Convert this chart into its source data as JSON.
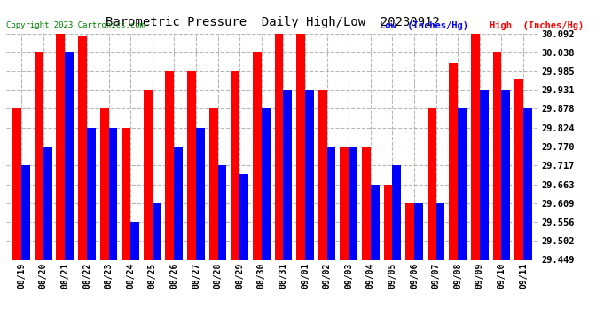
{
  "title": "Barometric Pressure  Daily High/Low  20230912",
  "copyright": "Copyright 2023 Cartronics.com",
  "legend_low": "Low  (Inches/Hg)",
  "legend_high": "High  (Inches/Hg)",
  "dates": [
    "08/19",
    "08/20",
    "08/21",
    "08/22",
    "08/23",
    "08/24",
    "08/25",
    "08/26",
    "08/27",
    "08/28",
    "08/29",
    "08/30",
    "08/31",
    "09/01",
    "09/02",
    "09/03",
    "09/04",
    "09/05",
    "09/06",
    "09/07",
    "09/08",
    "09/09",
    "09/10",
    "09/11"
  ],
  "high": [
    29.878,
    30.038,
    30.092,
    30.085,
    29.878,
    29.824,
    29.931,
    29.985,
    29.985,
    29.878,
    29.985,
    30.038,
    30.092,
    30.092,
    29.931,
    29.77,
    29.77,
    29.663,
    29.609,
    29.878,
    30.008,
    30.092,
    30.038,
    29.963
  ],
  "low": [
    29.717,
    29.77,
    30.038,
    29.824,
    29.824,
    29.556,
    29.609,
    29.77,
    29.824,
    29.717,
    29.692,
    29.878,
    29.931,
    29.931,
    29.77,
    29.77,
    29.663,
    29.717,
    29.609,
    29.609,
    29.878,
    29.931,
    29.931,
    29.878
  ],
  "ylim_min": 29.449,
  "ylim_max": 30.092,
  "ytick_step": 0.053,
  "yticks": [
    29.449,
    29.502,
    29.556,
    29.609,
    29.663,
    29.717,
    29.77,
    29.824,
    29.878,
    29.931,
    29.985,
    30.038,
    30.092
  ],
  "bar_color_high": "#ff0000",
  "bar_color_low": "#0000ff",
  "bg_color": "#ffffff",
  "grid_color": "#b0b0b0",
  "title_color": "#000000",
  "copyright_color": "#008000",
  "legend_low_color": "#0000ff",
  "legend_high_color": "#ff0000",
  "bar_width": 0.4
}
